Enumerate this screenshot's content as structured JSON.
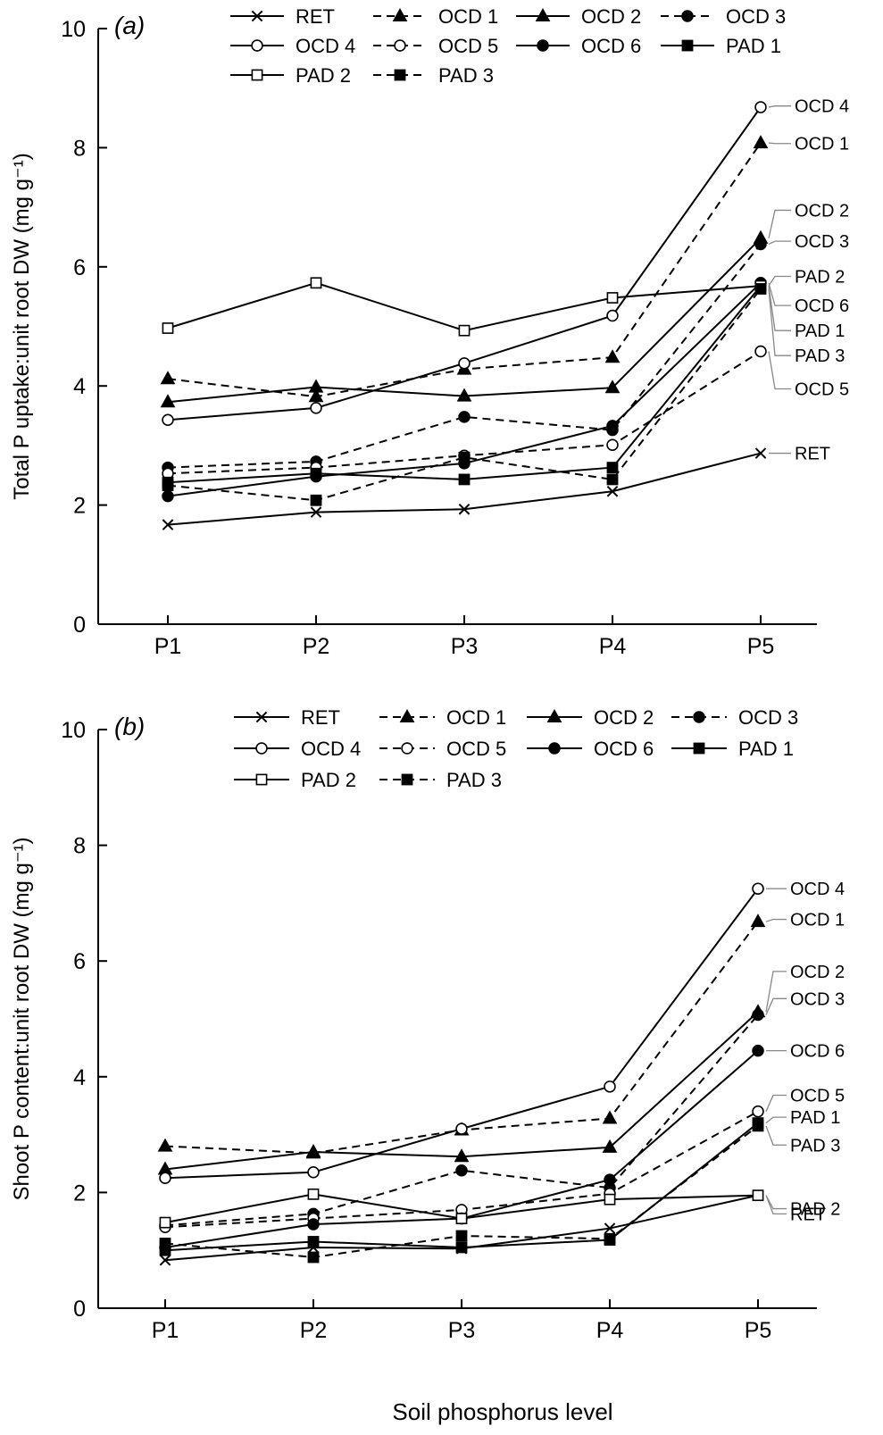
{
  "figure": {
    "xlabel": "Soil phosphorus level"
  },
  "chart_data": [
    {
      "type": "line",
      "panel_label": "(a)",
      "title": "",
      "xlabel": "",
      "ylabel": "Total P uptake:unit root DW (mg g⁻¹)",
      "categories": [
        "P1",
        "P2",
        "P3",
        "P4",
        "P5"
      ],
      "ylim": [
        0,
        10
      ],
      "yticks": [
        0,
        2,
        4,
        6,
        8,
        10
      ],
      "grid": false,
      "legend_position": "top",
      "series": [
        {
          "name": "RET",
          "style": "solid",
          "marker": "x",
          "values": [
            1.67,
            1.88,
            1.93,
            2.23,
            2.87
          ]
        },
        {
          "name": "OCD 1",
          "style": "dashed",
          "marker": "filled-triangle",
          "values": [
            4.12,
            3.82,
            4.28,
            4.48,
            8.08
          ]
        },
        {
          "name": "OCD 2",
          "style": "solid",
          "marker": "filled-triangle",
          "values": [
            3.73,
            3.98,
            3.83,
            3.97,
            6.48
          ]
        },
        {
          "name": "OCD 3",
          "style": "dashed",
          "marker": "filled-circle",
          "values": [
            2.63,
            2.73,
            3.48,
            3.26,
            6.38
          ]
        },
        {
          "name": "OCD 4",
          "style": "solid",
          "marker": "open-circle",
          "values": [
            3.43,
            3.63,
            4.38,
            5.18,
            8.68
          ]
        },
        {
          "name": "OCD 5",
          "style": "dashed",
          "marker": "open-circle",
          "values": [
            2.53,
            2.63,
            2.83,
            3.01,
            4.58
          ]
        },
        {
          "name": "OCD 6",
          "style": "solid",
          "marker": "filled-circle",
          "values": [
            2.15,
            2.48,
            2.7,
            3.33,
            5.73
          ]
        },
        {
          "name": "PAD 1",
          "style": "solid",
          "marker": "filled-square",
          "values": [
            2.38,
            2.53,
            2.43,
            2.63,
            5.68
          ]
        },
        {
          "name": "PAD 2",
          "style": "solid",
          "marker": "open-square",
          "values": [
            4.97,
            5.73,
            4.93,
            5.48,
            5.68
          ]
        },
        {
          "name": "PAD 3",
          "style": "dashed",
          "marker": "filled-square",
          "values": [
            2.33,
            2.08,
            2.8,
            2.43,
            5.63
          ]
        }
      ],
      "end_labels": [
        {
          "text": "OCD 4",
          "y": 8.7
        },
        {
          "text": "OCD 1",
          "y": 8.07
        },
        {
          "text": "OCD 2",
          "y": 6.95
        },
        {
          "text": "OCD 3",
          "y": 6.43
        },
        {
          "text": "PAD 2",
          "y": 5.84
        },
        {
          "text": "OCD 6",
          "y": 5.35
        },
        {
          "text": "PAD 1",
          "y": 4.93
        },
        {
          "text": "PAD 3",
          "y": 4.51
        },
        {
          "text": "OCD 5",
          "y": 3.95
        },
        {
          "text": "RET",
          "y": 2.87
        }
      ]
    },
    {
      "type": "line",
      "panel_label": "(b)",
      "title": "",
      "xlabel": "Soil phosphorus level",
      "ylabel": "Shoot P content:unit root DW (mg g⁻¹)",
      "categories": [
        "P1",
        "P2",
        "P3",
        "P4",
        "P5"
      ],
      "ylim": [
        0,
        10
      ],
      "yticks": [
        0,
        2,
        4,
        6,
        8,
        10
      ],
      "grid": false,
      "legend_position": "top",
      "series": [
        {
          "name": "RET",
          "style": "solid",
          "marker": "x",
          "values": [
            0.83,
            1.05,
            1.03,
            1.38,
            1.95
          ]
        },
        {
          "name": "OCD 1",
          "style": "dashed",
          "marker": "filled-triangle",
          "values": [
            2.8,
            2.68,
            3.08,
            3.28,
            6.68
          ]
        },
        {
          "name": "OCD 2",
          "style": "solid",
          "marker": "filled-triangle",
          "values": [
            2.4,
            2.7,
            2.62,
            2.78,
            5.12
          ]
        },
        {
          "name": "OCD 3",
          "style": "dashed",
          "marker": "filled-circle",
          "values": [
            1.43,
            1.63,
            2.38,
            2.08,
            5.07
          ]
        },
        {
          "name": "OCD 4",
          "style": "solid",
          "marker": "open-circle",
          "values": [
            2.25,
            2.35,
            3.1,
            3.83,
            7.25
          ]
        },
        {
          "name": "OCD 5",
          "style": "dashed",
          "marker": "open-circle",
          "values": [
            1.4,
            1.55,
            1.7,
            1.98,
            3.4
          ]
        },
        {
          "name": "OCD 6",
          "style": "solid",
          "marker": "filled-circle",
          "values": [
            1.05,
            1.45,
            1.55,
            2.22,
            4.45
          ]
        },
        {
          "name": "PAD 1",
          "style": "solid",
          "marker": "filled-square",
          "values": [
            1.0,
            1.15,
            1.05,
            1.18,
            3.2
          ]
        },
        {
          "name": "PAD 2",
          "style": "solid",
          "marker": "open-square",
          "values": [
            1.48,
            1.97,
            1.55,
            1.88,
            1.95
          ]
        },
        {
          "name": "PAD 3",
          "style": "dashed",
          "marker": "filled-square",
          "values": [
            1.12,
            0.88,
            1.25,
            1.2,
            3.15
          ]
        }
      ],
      "end_labels": [
        {
          "text": "OCD 4",
          "y": 7.25
        },
        {
          "text": "OCD 1",
          "y": 6.72
        },
        {
          "text": "OCD 2",
          "y": 5.82
        },
        {
          "text": "OCD 3",
          "y": 5.35
        },
        {
          "text": "OCD 6",
          "y": 4.45
        },
        {
          "text": "OCD 5",
          "y": 3.68
        },
        {
          "text": "PAD 1",
          "y": 3.3
        },
        {
          "text": "PAD 3",
          "y": 2.82
        },
        {
          "text": "PAD 2",
          "y": 1.72
        },
        {
          "text": "RET",
          "y": 1.63
        }
      ]
    }
  ]
}
